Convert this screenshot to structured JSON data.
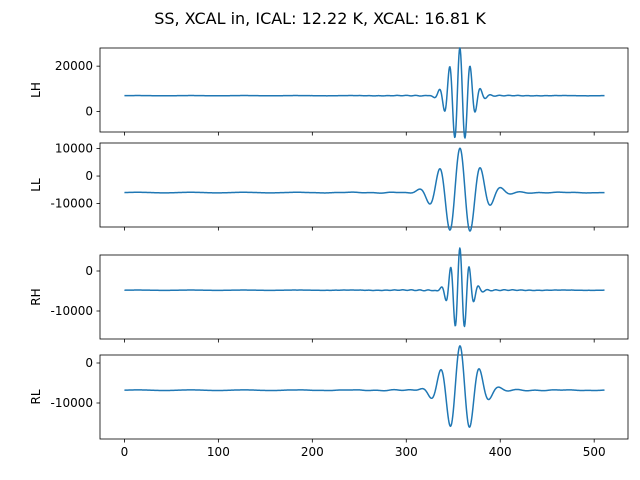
{
  "figure": {
    "title": "SS, XCAL in, ICAL: 12.22 K, XCAL: 16.81 K",
    "line_color": "#1f77b4"
  },
  "chart_data": [
    {
      "type": "line",
      "ylabel": "LH",
      "xlim": [
        -26,
        536
      ],
      "ylim": [
        -9000,
        28000
      ],
      "yticks": [
        0,
        20000
      ],
      "xticks": [
        0,
        100,
        200,
        300,
        400,
        500
      ],
      "baseline": 7000,
      "wiggle": 350,
      "packet": {
        "center": 357,
        "sigma": 11,
        "period": 11,
        "amp": 21000
      },
      "x_range": [
        0,
        511
      ]
    },
    {
      "type": "line",
      "ylabel": "LL",
      "xlim": [
        -26,
        536
      ],
      "ylim": [
        -18500,
        12000
      ],
      "yticks": [
        -10000,
        0,
        10000
      ],
      "xticks": [
        0,
        100,
        200,
        300,
        400,
        500
      ],
      "baseline": -6000,
      "wiggle": 700,
      "packet": {
        "center": 357,
        "sigma": 20,
        "period": 22,
        "amp": 16000
      },
      "x_range": [
        0,
        511
      ]
    },
    {
      "type": "line",
      "ylabel": "RH",
      "xlim": [
        -26,
        536
      ],
      "ylim": [
        -17000,
        4000
      ],
      "yticks": [
        -10000,
        0
      ],
      "xticks": [
        0,
        100,
        200,
        300,
        400,
        500
      ],
      "baseline": -4800,
      "wiggle": 250,
      "packet": {
        "center": 357,
        "sigma": 9,
        "period": 10,
        "amp": 10500
      },
      "x_range": [
        0,
        511
      ]
    },
    {
      "type": "line",
      "ylabel": "RL",
      "xlim": [
        -26,
        536
      ],
      "ylim": [
        -19000,
        2000
      ],
      "yticks": [
        -10000,
        0
      ],
      "xticks": [
        0,
        100,
        200,
        300,
        400,
        500
      ],
      "baseline": -6800,
      "wiggle": 500,
      "packet": {
        "center": 357,
        "sigma": 17,
        "period": 21,
        "amp": 11000
      },
      "x_range": [
        0,
        511
      ]
    }
  ]
}
